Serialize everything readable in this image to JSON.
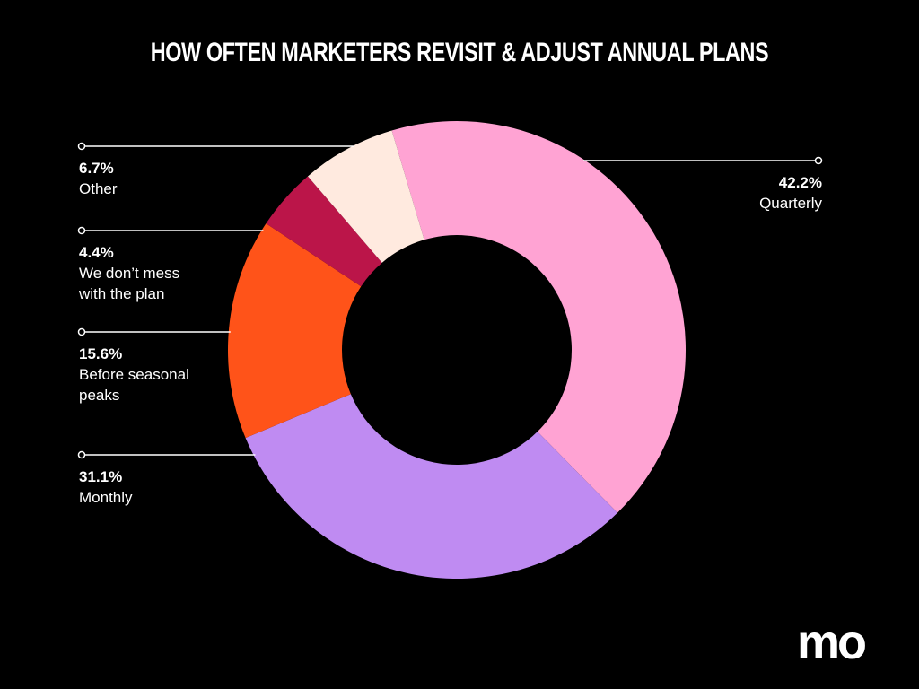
{
  "chart_data": {
    "type": "pie",
    "variant": "donut",
    "title": "HOW OFTEN MARKETERS REVISIT & ADJUST ANNUAL PLANS",
    "slices": [
      {
        "label": "Quarterly",
        "value": 42.2,
        "value_label": "42.2%",
        "color": "#FFA3D3",
        "label_lines": [
          "Quarterly"
        ],
        "label_side": "right"
      },
      {
        "label": "Monthly",
        "value": 31.1,
        "value_label": "31.1%",
        "color": "#BF8BF2",
        "label_lines": [
          "Monthly"
        ],
        "label_side": "left"
      },
      {
        "label": "Before seasonal peaks",
        "value": 15.6,
        "value_label": "15.6%",
        "color": "#FF5319",
        "label_lines": [
          "Before seasonal",
          "peaks"
        ],
        "label_side": "left"
      },
      {
        "label": "We don’t mess with the plan",
        "value": 4.4,
        "value_label": "4.4%",
        "color": "#BB1549",
        "label_lines": [
          "We don’t mess",
          "with the plan"
        ],
        "label_side": "left"
      },
      {
        "label": "Other",
        "value": 6.7,
        "value_label": "6.7%",
        "color": "#FFEADF",
        "label_lines": [
          "Other"
        ],
        "label_side": "left"
      }
    ],
    "start_slice_boundary": "top",
    "direction": "clockwise"
  },
  "brand": {
    "logo_text": "mo",
    "logo_color": "#FFFFFF"
  },
  "colors": {
    "background": "#000000",
    "text": "#FFFFFF",
    "leader_line": "#FFFFFF"
  }
}
